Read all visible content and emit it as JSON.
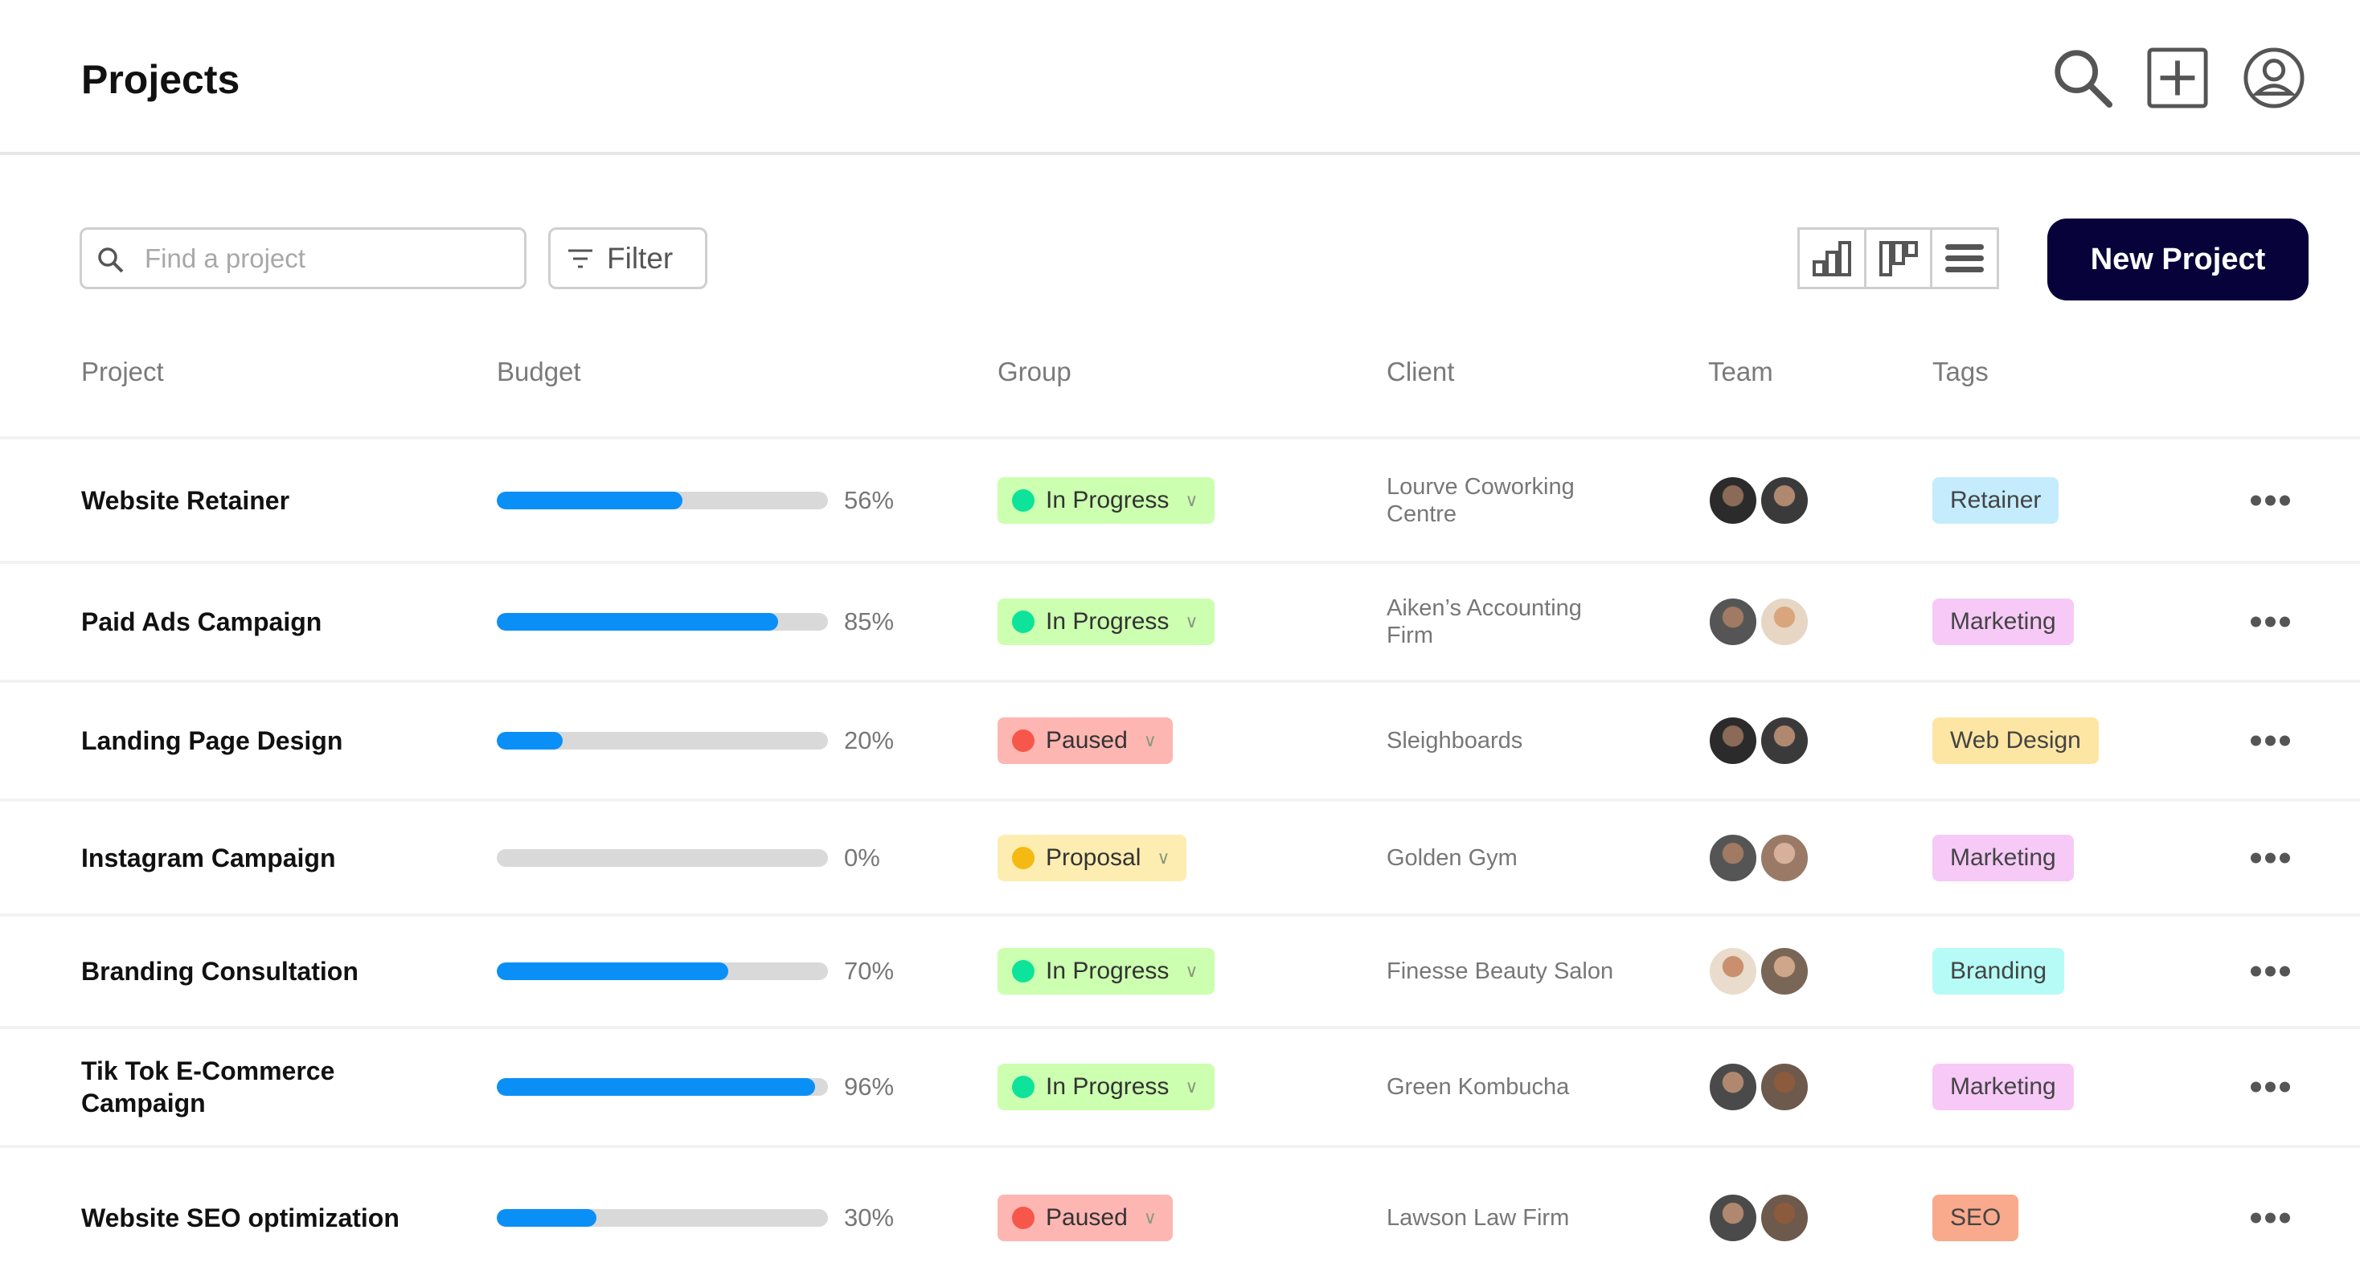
{
  "header": {
    "title": "Projects",
    "icons": [
      "search-icon",
      "plus-icon",
      "user-icon"
    ]
  },
  "toolbar": {
    "search_placeholder": "Find a project",
    "search_value": "",
    "filter_label": "Filter",
    "views": [
      "chart-view-icon",
      "board-view-icon",
      "list-view-icon"
    ],
    "new_project_label": "New Project"
  },
  "columns": [
    "Project",
    "Budget",
    "Group",
    "Client",
    "Team",
    "Tags"
  ],
  "status_colors": {
    "In Progress": {
      "bg": "#ccffb0",
      "dot": "#0de39a"
    },
    "Paused": {
      "bg": "#fdb6b2",
      "dot": "#f7574b"
    },
    "Proposal": {
      "bg": "#fdedb0",
      "dot": "#f4ba13"
    }
  },
  "tag_colors": {
    "Retainer": "#c4ecfd",
    "Marketing": "#f6c9f7",
    "Web Design": "#fde6a3",
    "Branding": "#b6fbf6",
    "SEO": "#f9a98c"
  },
  "rows": [
    {
      "project": "Website Retainer",
      "budget_pct": 56,
      "budget_label": "56%",
      "group": "In Progress",
      "client": "Lourve Coworking Centre",
      "tag": "Retainer"
    },
    {
      "project": "Paid Ads Campaign",
      "budget_pct": 85,
      "budget_label": "85%",
      "group": "In Progress",
      "client": "Aiken’s Accounting Firm",
      "tag": "Marketing"
    },
    {
      "project": "Landing Page Design",
      "budget_pct": 20,
      "budget_label": "20%",
      "group": "Paused",
      "client": "Sleighboards",
      "tag": "Web Design"
    },
    {
      "project": "Instagram Campaign",
      "budget_pct": 0,
      "budget_label": "0%",
      "group": "Proposal",
      "client": "Golden Gym",
      "tag": "Marketing"
    },
    {
      "project": "Branding Consultation",
      "budget_pct": 70,
      "budget_label": "70%",
      "group": "In Progress",
      "client": "Finesse Beauty Salon",
      "tag": "Branding"
    },
    {
      "project": "Tik Tok E-Commerce Campaign",
      "budget_pct": 96,
      "budget_label": "96%",
      "group": "In Progress",
      "client": "Green Kombucha",
      "tag": "Marketing"
    },
    {
      "project": "Website SEO optimization",
      "budget_pct": 30,
      "budget_label": "30%",
      "group": "Paused",
      "client": "Lawson Law Firm",
      "tag": "SEO"
    }
  ]
}
